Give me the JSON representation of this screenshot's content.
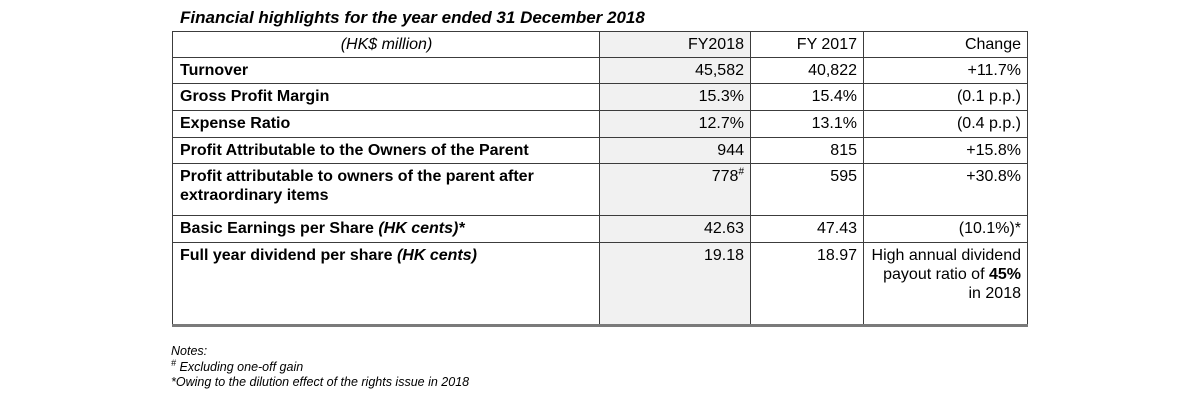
{
  "title": "Financial highlights for the year ended 31 December 2018",
  "table": {
    "columns": [
      "(HK$ million)",
      "FY2018",
      "FY 2017",
      "Change"
    ],
    "rows": [
      {
        "label": "Turnover",
        "fy2018": "45,582",
        "fy2017": "40,822",
        "change": "+11.7%"
      },
      {
        "label": "Gross Profit Margin",
        "fy2018": "15.3%",
        "fy2017": "15.4%",
        "change": "(0.1 p.p.)"
      },
      {
        "label": "Expense Ratio",
        "fy2018": "12.7%",
        "fy2017": "13.1%",
        "change": "(0.4 p.p.)"
      },
      {
        "label": "Profit Attributable to the Owners of the Parent",
        "fy2018": "944",
        "fy2017": "815",
        "change": "+15.8%"
      },
      {
        "label": "Profit attributable to owners of the parent after extraordinary items",
        "fy2018": "778",
        "fy2018_note_marker": "#",
        "fy2017": "595",
        "change": "+30.8%"
      },
      {
        "label": "Basic Earnings per Share ",
        "label_note": "(HK cents)*",
        "fy2018": "42.63",
        "fy2017": "47.43",
        "change": "(10.1%)*"
      },
      {
        "label": "Full year dividend per share ",
        "label_note": "(HK cents)",
        "fy2018": "19.18",
        "fy2017": "18.97",
        "change_pre": "High annual dividend payout ratio of ",
        "change_strong": "45%",
        "change_post": " in 2018"
      }
    ]
  },
  "notes": {
    "heading": "Notes:",
    "note1_marker": "#",
    "note1_text": " Excluding one-off gain",
    "note2": "*Owing to the dilution effect of the rights issue in 2018"
  },
  "colors": {
    "highlight_column_bg": "#f1f1f1",
    "border": "#3c3c3c",
    "table_bottom_border": "#7a7a7a",
    "text": "#000000"
  }
}
